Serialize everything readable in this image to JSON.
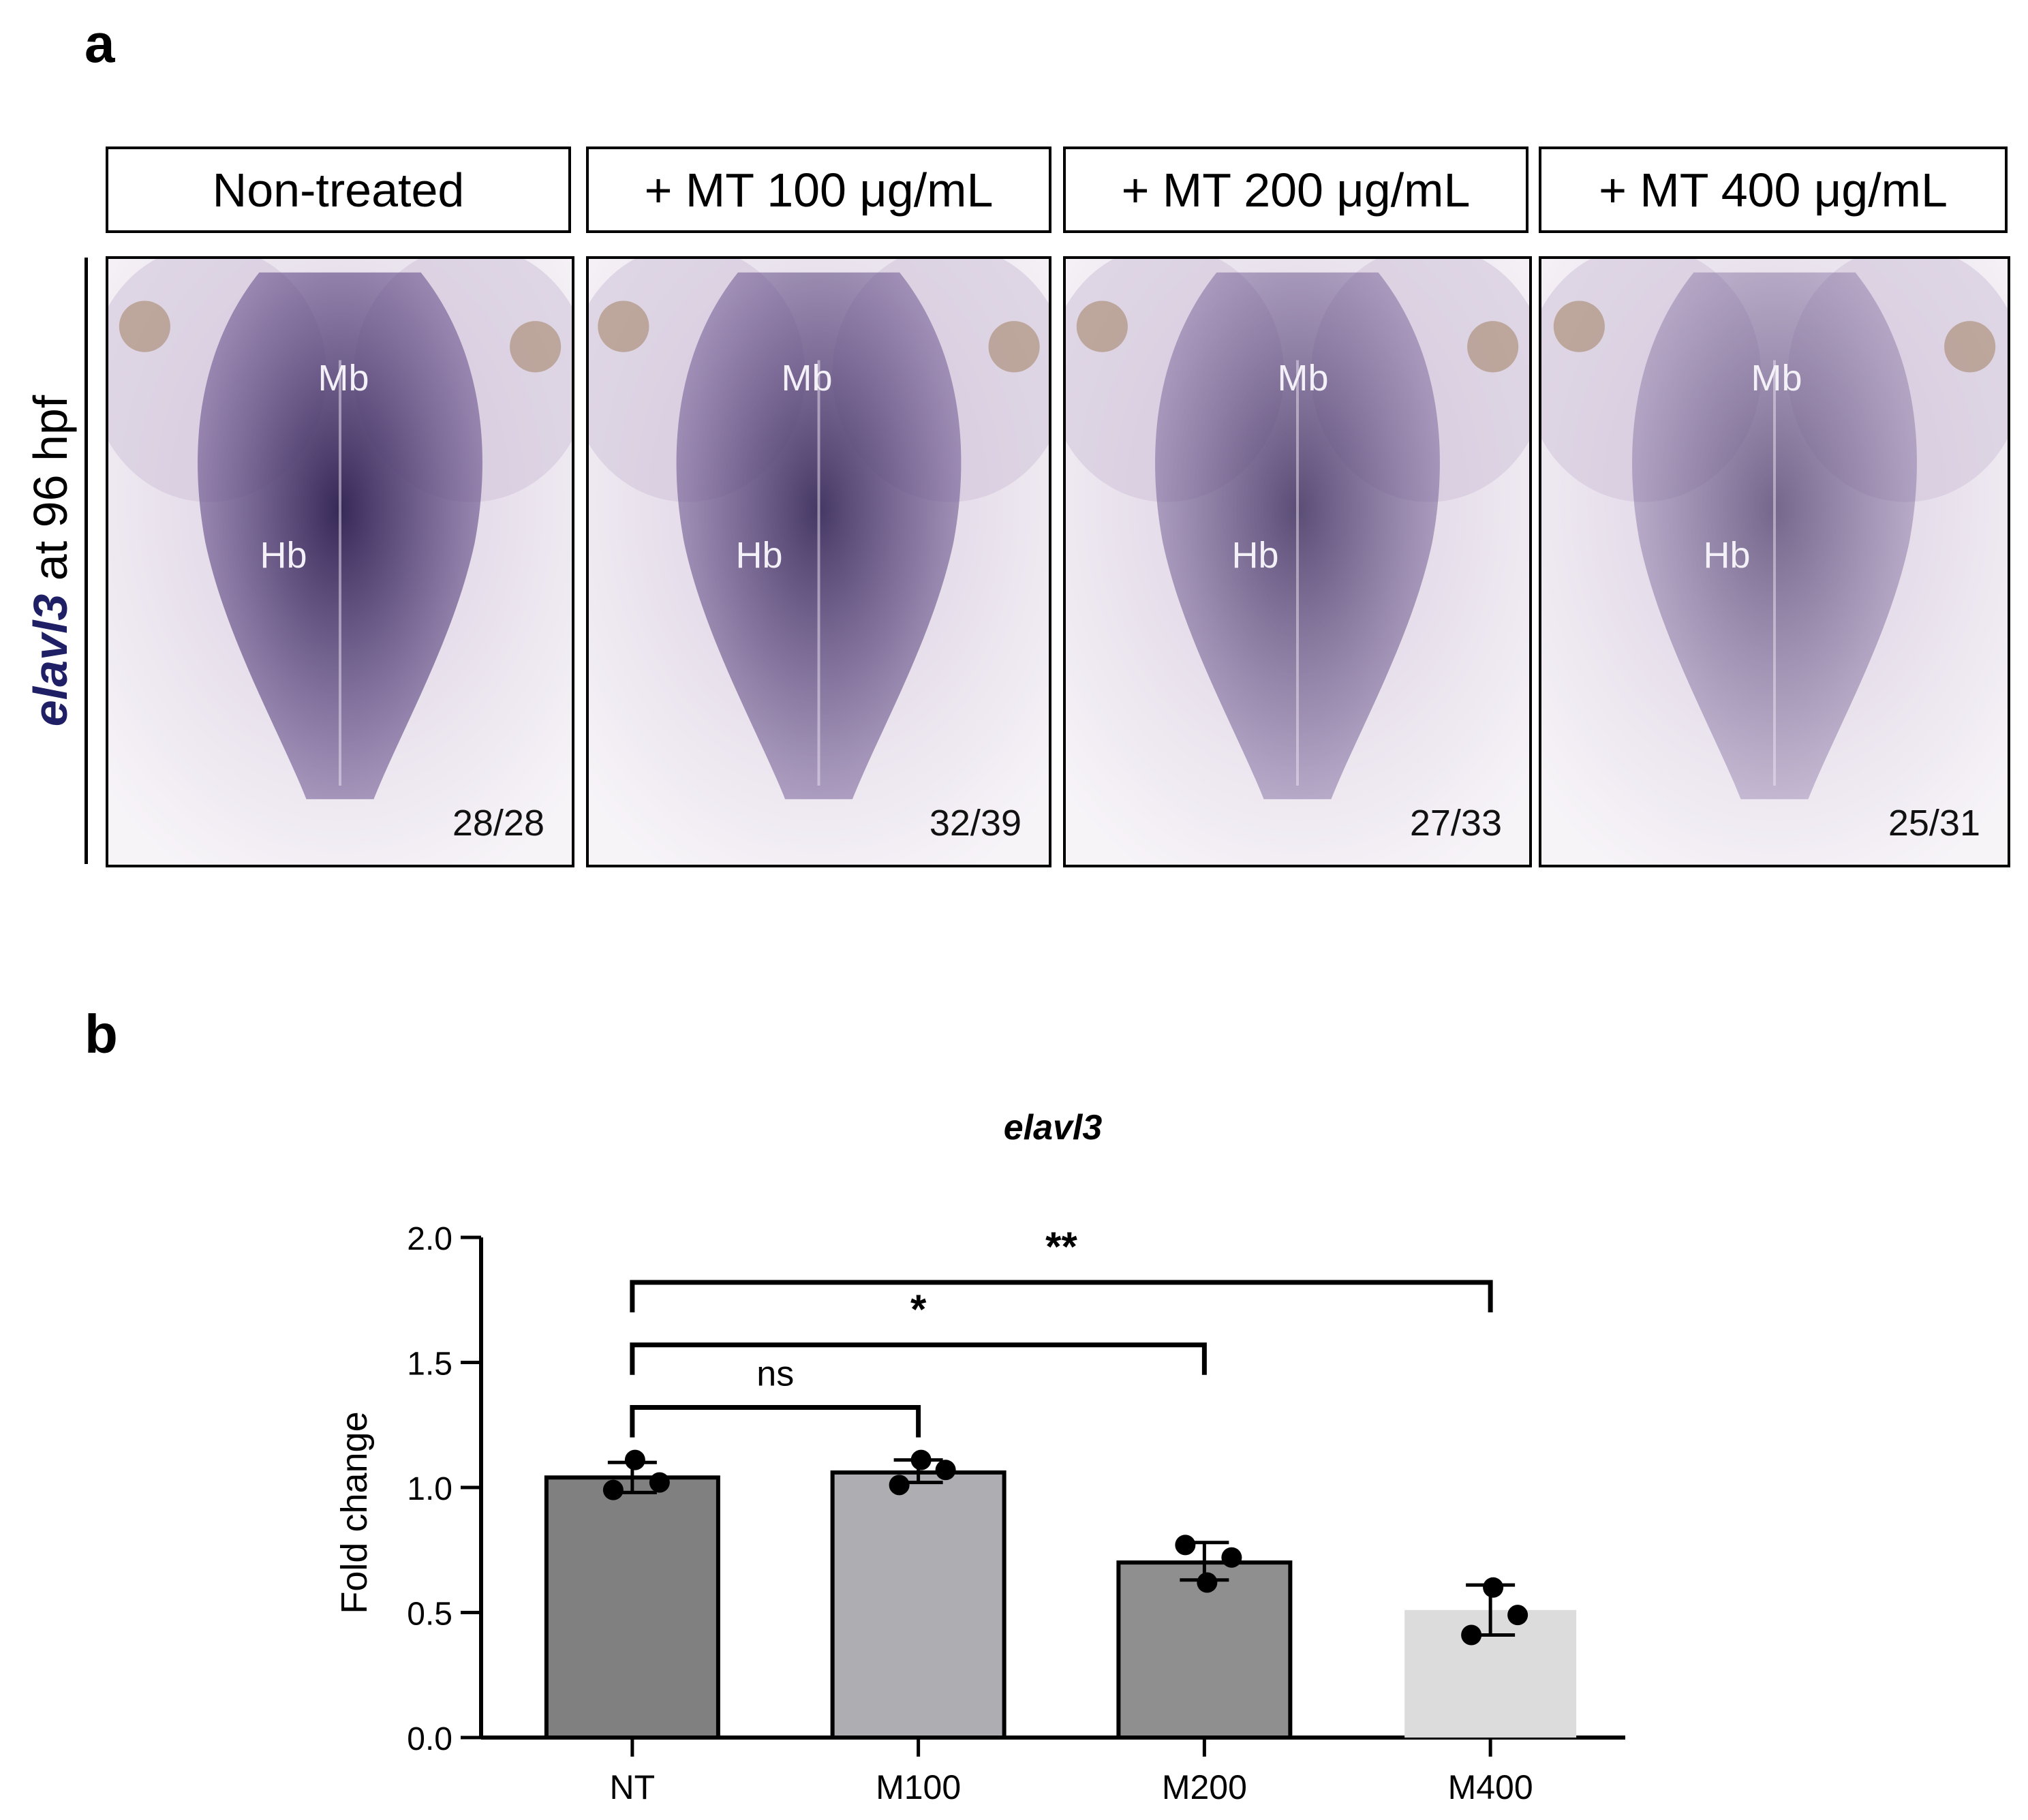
{
  "panel_a": {
    "letter": "a",
    "side_label_gene": "elavl3",
    "side_label_rest": " at 96 hpf",
    "panels": [
      {
        "header": "Non-treated",
        "mb": "Mb",
        "hb": "Hb",
        "count": "28/28",
        "stain": 1.0
      },
      {
        "header": "+ MT 100 μg/mL",
        "mb": "Mb",
        "hb": "Hb",
        "count": "32/39",
        "stain": 0.85
      },
      {
        "header": "+ MT 200 μg/mL",
        "mb": "Mb",
        "hb": "Hb",
        "count": "27/33",
        "stain": 0.65
      },
      {
        "header": "+ MT 400 μg/mL",
        "mb": "Mb",
        "hb": "Hb",
        "count": "25/31",
        "stain": 0.4
      }
    ]
  },
  "panel_b": {
    "letter": "b"
  },
  "chart_data": {
    "type": "bar",
    "title": "elavl3",
    "xlabel": "",
    "ylabel": "Fold change",
    "ylim": [
      0,
      2.0
    ],
    "yticks": [
      "0.0",
      "0.5",
      "1.0",
      "1.5",
      "2.0"
    ],
    "grid": false,
    "categories": [
      "NT",
      "M100",
      "M200",
      "M400"
    ],
    "values": [
      1.04,
      1.06,
      0.7,
      0.51
    ],
    "error": [
      [
        0.98,
        1.1
      ],
      [
        1.02,
        1.11
      ],
      [
        0.63,
        0.78
      ],
      [
        0.41,
        0.61
      ]
    ],
    "points": [
      [
        0.99,
        1.11,
        1.02
      ],
      [
        1.01,
        1.11,
        1.07
      ],
      [
        0.77,
        0.62,
        0.72
      ],
      [
        0.41,
        0.6,
        0.49
      ]
    ],
    "bar_colors": [
      "#808080",
      "#adadb2",
      "#8f8f8f",
      "#dcdcdc"
    ],
    "significance": [
      {
        "from": "NT",
        "to": "M100",
        "label": "ns"
      },
      {
        "from": "NT",
        "to": "M200",
        "label": "*"
      },
      {
        "from": "NT",
        "to": "M400",
        "label": "**"
      }
    ]
  }
}
